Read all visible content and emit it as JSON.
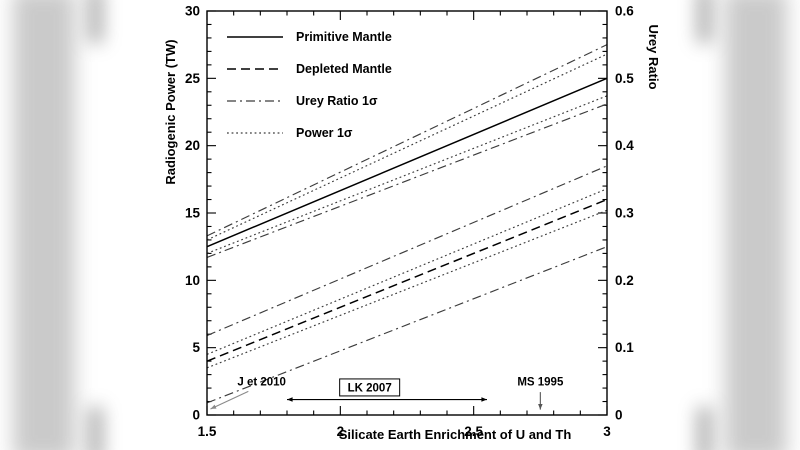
{
  "chart_data": {
    "type": "line",
    "title": "",
    "xlabel": "Silicate Earth Enrichment of U and Th",
    "ylabel_left": "Radiogenic Power (TW)",
    "ylabel_right": "Urey Ratio",
    "xlim": [
      1.5,
      3
    ],
    "ylim_left": [
      0,
      30
    ],
    "ylim_right": [
      0,
      0.6
    ],
    "grid": false,
    "legend_position": "upper-left-inside",
    "x_major_ticks": [
      1.5,
      2,
      2.5,
      3
    ],
    "x_tick_labels": [
      "1.5",
      "2",
      "2.5",
      "3"
    ],
    "x_minor_step": 0.1,
    "y_left_major_ticks": [
      0,
      5,
      10,
      15,
      20,
      25,
      30
    ],
    "y_left_tick_labels": [
      "0",
      "5",
      "10",
      "15",
      "20",
      "25",
      "30"
    ],
    "y_left_minor_step": 1,
    "y_right_major_ticks": [
      0,
      0.1,
      0.2,
      0.3,
      0.4,
      0.5,
      0.6
    ],
    "y_right_tick_labels": [
      "0",
      "0.1",
      "0.2",
      "0.3",
      "0.4",
      "0.5",
      "0.6"
    ],
    "series": [
      {
        "name": "Primitive Mantle",
        "style": "solid",
        "x": [
          1.5,
          3
        ],
        "y_tw": [
          12.5,
          25.0
        ]
      },
      {
        "name": "Depleted Mantle",
        "style": "dashed",
        "x": [
          1.5,
          3
        ],
        "y_tw": [
          4.0,
          16.0
        ]
      },
      {
        "name": "Primitive Mantle +1σ Urey Ratio",
        "style": "dashdot",
        "x": [
          1.5,
          3
        ],
        "y_tw": [
          13.3,
          27.5
        ]
      },
      {
        "name": "Primitive Mantle +1σ Power",
        "style": "dotted",
        "x": [
          1.5,
          3
        ],
        "y_tw": [
          13.0,
          26.8
        ]
      },
      {
        "name": "Primitive Mantle -1σ Power",
        "style": "dotted",
        "x": [
          1.5,
          3
        ],
        "y_tw": [
          12.0,
          23.7
        ]
      },
      {
        "name": "Primitive Mantle -1σ Urey Ratio",
        "style": "dashdot",
        "x": [
          1.5,
          3
        ],
        "y_tw": [
          11.7,
          23.1
        ]
      },
      {
        "name": "Depleted Mantle +1σ Urey Ratio",
        "style": "dashdot",
        "x": [
          1.5,
          3
        ],
        "y_tw": [
          5.9,
          18.5
        ]
      },
      {
        "name": "Depleted Mantle +1σ Power",
        "style": "dotted",
        "x": [
          1.5,
          3
        ],
        "y_tw": [
          4.5,
          16.8
        ]
      },
      {
        "name": "Depleted Mantle -1σ Power",
        "style": "dotted",
        "x": [
          1.5,
          3
        ],
        "y_tw": [
          3.5,
          15.2
        ]
      },
      {
        "name": "Depleted Mantle -1σ Urey Ratio",
        "style": "dashdot",
        "x": [
          1.5,
          3
        ],
        "y_tw": [
          0.9,
          12.5
        ]
      }
    ],
    "annotations": [
      {
        "text": "J et 2010",
        "text_x": 1.705,
        "text_y_tw": 2.2,
        "boxed": false,
        "arrow": {
          "x1": 1.655,
          "y1": 1.75,
          "x2": 1.513,
          "y2": 0.45,
          "double": false,
          "color": "#8a8a8a"
        }
      },
      {
        "text": "LK 2007",
        "text_x": 2.11,
        "text_y_tw": 1.75,
        "boxed": true,
        "arrow": {
          "x1": 1.8,
          "y1": 1.15,
          "x2": 2.55,
          "y2": 1.15,
          "double": true,
          "color": "#000000"
        }
      },
      {
        "text": "MS 1995",
        "text_x": 2.75,
        "text_y_tw": 2.2,
        "boxed": false,
        "arrow": {
          "x1": 2.75,
          "y1": 1.7,
          "x2": 2.75,
          "y2": 0.4,
          "double": false,
          "color": "#555555"
        }
      }
    ]
  },
  "legend": {
    "items": [
      {
        "label": "Primitive Mantle",
        "style": "solid"
      },
      {
        "label": "Depleted Mantle",
        "style": "dashed"
      },
      {
        "label": "Urey Ratio 1σ",
        "style": "dashdot"
      },
      {
        "label": "Power 1σ",
        "style": "dotted"
      }
    ]
  },
  "colors": {
    "frame": "#000000",
    "main_lines": "#000000",
    "sigma_lines": "#3c3c3c",
    "background": "#ffffff"
  }
}
